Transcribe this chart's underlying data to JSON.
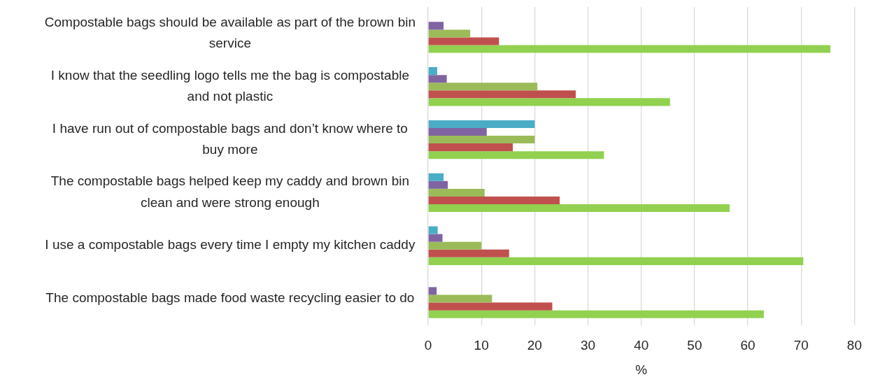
{
  "chart_data": {
    "type": "bar",
    "orientation": "horizontal",
    "categories": [
      "Compostable bags should be available as part of the brown bin service",
      "I know that the seedling logo tells me the bag is compostable and not plastic",
      "I have run out of compostable bags and don’t know where to buy more",
      "The compostable bags helped keep my caddy and brown bin clean and were strong enough",
      "I use a compostable bags every time I empty my kitchen caddy",
      "The compostable bags made food waste recycling easier to do"
    ],
    "series": [
      {
        "color": "#4bacc6",
        "values": [
          null,
          1.7,
          20.0,
          2.9,
          1.8,
          null
        ]
      },
      {
        "color": "#8064a2",
        "values": [
          2.9,
          3.5,
          11.0,
          3.7,
          2.7,
          1.6
        ]
      },
      {
        "color": "#9bbb59",
        "values": [
          7.9,
          20.5,
          20.0,
          10.6,
          10.0,
          12.0
        ]
      },
      {
        "color": "#c0504d",
        "values": [
          13.3,
          27.7,
          15.9,
          24.7,
          15.2,
          23.3
        ]
      },
      {
        "color": "#92d050",
        "values": [
          75.5,
          45.4,
          33.0,
          56.6,
          70.4,
          63.0
        ]
      }
    ],
    "xlabel": "%",
    "xlim": [
      0,
      80
    ],
    "xticks": [
      0,
      10,
      20,
      30,
      40,
      50,
      60,
      70,
      80
    ],
    "grid": "x",
    "legend": false
  }
}
